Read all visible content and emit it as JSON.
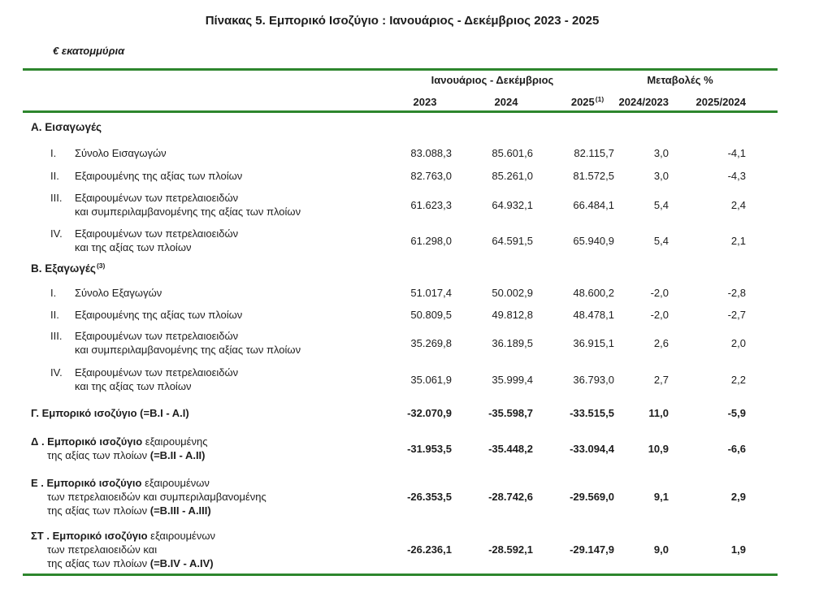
{
  "page": {
    "title": "Πίνακας 5. Εμπορικό Ισοζύγιο : Ιανουάριος - Δεκέμβριος 2023 - 2025",
    "unit_label": "€ εκατομμύρια"
  },
  "colors": {
    "rule_green": "#2d862d",
    "text": "#1d1d1d"
  },
  "table": {
    "group_headers": {
      "period": "Ιανουάριος - Δεκέμβριος",
      "changes": "Μεταβολές %"
    },
    "col_headers": {
      "y2023": "2023",
      "y2024": "2024",
      "y2025": "2025",
      "y2025_sup": "(1)",
      "chg1": "2024/2023",
      "chg2": "2025/2024"
    },
    "section_a": {
      "title": "Α. Εισαγωγές",
      "rows": [
        {
          "num": "I.",
          "line1": "Σύνολο Εισαγωγών",
          "v2023": "83.088,3",
          "v2024": "85.601,6",
          "v2025": "82.115,7",
          "c1": "3,0",
          "c2": "-4,1"
        },
        {
          "num": "II.",
          "line1": "Εξαιρουμένης  της αξίας των πλοίων",
          "v2023": "82.763,0",
          "v2024": "85.261,0",
          "v2025": "81.572,5",
          "c1": "3,0",
          "c2": "-4,3"
        },
        {
          "num": "III.",
          "line1": "Εξαιρουμένων των πετρελαιοειδών",
          "line2": "και συμπεριλαμβανομένης της αξίας των πλοίων",
          "v2023": "61.623,3",
          "v2024": "64.932,1",
          "v2025": "66.484,1",
          "c1": "5,4",
          "c2": "2,4"
        },
        {
          "num": "IV.",
          "line1": "Εξαιρουμένων των πετρελαιοειδών",
          "line2": "και  της αξίας των πλοίων",
          "v2023": "61.298,0",
          "v2024": "64.591,5",
          "v2025": "65.940,9",
          "c1": "5,4",
          "c2": "2,1"
        }
      ]
    },
    "section_b": {
      "title": "Β. Εξαγωγές",
      "title_sup": "(3)",
      "rows": [
        {
          "num": "I.",
          "line1": "Σύνολο Εξαγωγών",
          "v2023": "51.017,4",
          "v2024": "50.002,9",
          "v2025": "48.600,2",
          "c1": "-2,0",
          "c2": "-2,8"
        },
        {
          "num": "II.",
          "line1": "Εξαιρουμένης  της αξίας των πλοίων",
          "v2023": "50.809,5",
          "v2024": "49.812,8",
          "v2025": "48.478,1",
          "c1": "-2,0",
          "c2": "-2,7"
        },
        {
          "num": "III.",
          "line1": "Εξαιρουμένων των πετρελαιοειδών",
          "line2": "και συμπεριλαμβανομένης  της αξίας των πλοίων",
          "v2023": "35.269,8",
          "v2024": "36.189,5",
          "v2025": "36.915,1",
          "c1": "2,6",
          "c2": "2,0"
        },
        {
          "num": "IV.",
          "line1": "Εξαιρουμένων των πετρελαιοειδών",
          "line2": "και  της αξίας των πλοίων",
          "v2023": "35.061,9",
          "v2024": "35.999,4",
          "v2025": "36.793,0",
          "c1": "2,7",
          "c2": "2,2"
        }
      ]
    },
    "totals": {
      "gamma": {
        "t1_bold": "Γ. Εμπορικό ισοζύγιο (=Β.Ι - Α.Ι)",
        "v2023": "-32.070,9",
        "v2024": "-35.598,7",
        "v2025": "-33.515,5",
        "c1": "11,0",
        "c2": "-5,9"
      },
      "delta": {
        "t1_bold": "Δ . Εμπορικό ισοζύγιο",
        "t1_norm": " εξαιρουμένης",
        "t2_norm": "της αξίας των πλοίων ",
        "t2_bold": "(=Β.ΙΙ - Α.ΙΙ)",
        "v2023": "-31.953,5",
        "v2024": "-35.448,2",
        "v2025": "-33.094,4",
        "c1": "10,9",
        "c2": "-6,6"
      },
      "epsilon": {
        "t1_bold": "Ε . Εμπορικό ισοζύγιο",
        "t1_norm": " εξαιρουμένων",
        "t2_norm": "των πετρελαιοειδών και συμπεριλαμβανομένης",
        "t3_norm": "της αξίας των πλοίων ",
        "t3_bold": "(=Β.ΙΙΙ - Α.ΙΙΙ)",
        "v2023": "-26.353,5",
        "v2024": "-28.742,6",
        "v2025": "-29.569,0",
        "c1": "9,1",
        "c2": "2,9"
      },
      "sigma_tau": {
        "t1_bold": "ΣΤ . Εμπορικό ισοζύγιο",
        "t1_norm": " εξαιρουμένων",
        "t2_norm": "των πετρελαιοειδών και",
        "t3_norm": "της αξίας των πλοίων ",
        "t3_bold": "(=Β.IV - A.IV)",
        "v2023": "-26.236,1",
        "v2024": "-28.592,1",
        "v2025": "-29.147,9",
        "c1": "9,0",
        "c2": "1,9"
      }
    }
  }
}
